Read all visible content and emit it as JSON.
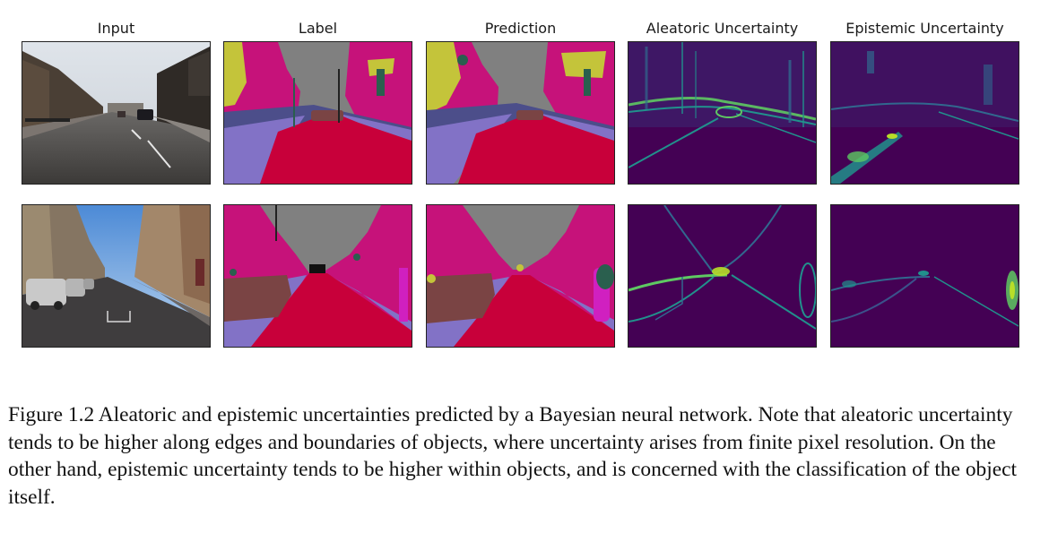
{
  "figure": {
    "column_titles": [
      "Input",
      "Label",
      "Prediction",
      "Aleatoric Uncertainty",
      "Epistemic Uncertainty"
    ],
    "rows": [
      {
        "scene": "street-scene-1"
      },
      {
        "scene": "street-scene-2"
      }
    ],
    "colors": {
      "road": "#c8003a",
      "sidewalk": "#8272c6",
      "building": "#c6127a",
      "sky": "#808080",
      "tree": "#c4c43a",
      "car": "#7a4444",
      "pole": "#2a5f4e",
      "viridis_dark": "#440154",
      "viridis_mid": "#21918c",
      "viridis_bright": "#5ec962"
    },
    "caption": "Figure 1.2 Aleatoric and epistemic uncertainties predicted by a Bayesian neural network. Note that aleatoric uncertainty tends to be higher along edges and boundaries of objects, where uncertainty arises from finite pixel resolution. On the other hand, epistemic uncertainty tends to be higher within objects, and is concerned with the classification of the object itself."
  }
}
